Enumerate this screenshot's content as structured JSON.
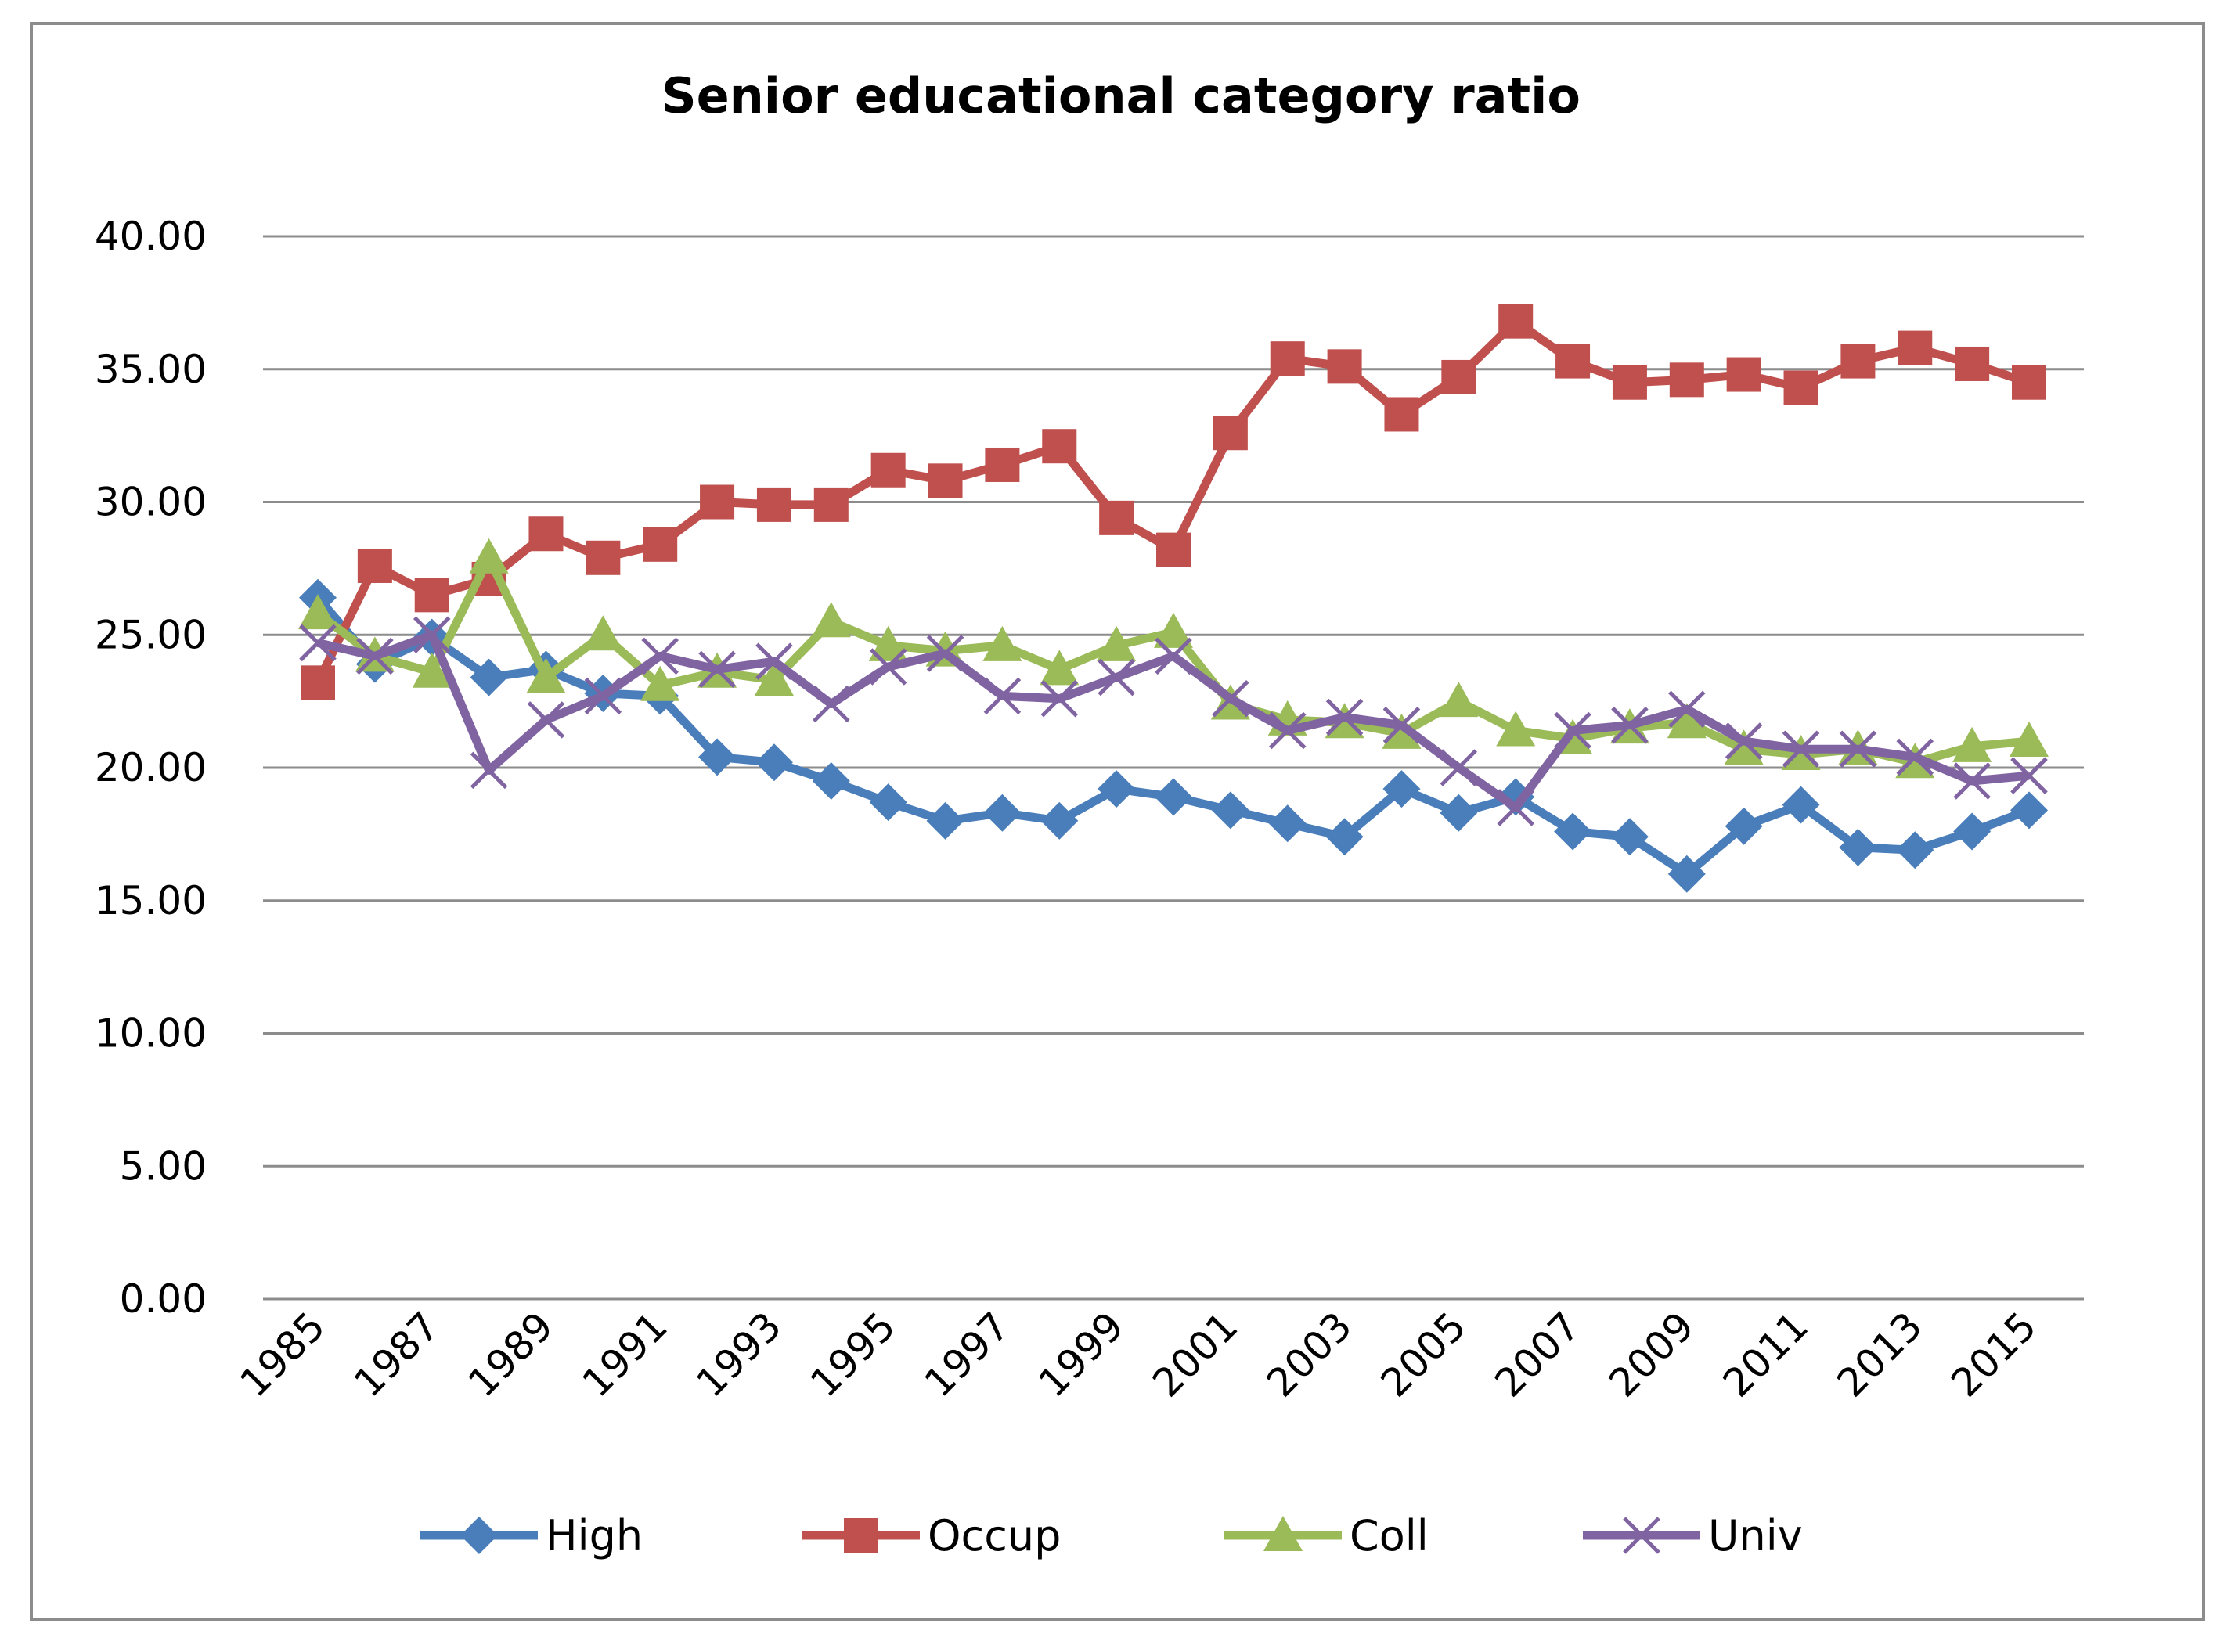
{
  "chart_data": {
    "type": "line",
    "title": "Senior educational  category ratio",
    "xlabel": "",
    "ylabel": "",
    "x": [
      1985,
      1986,
      1987,
      1988,
      1989,
      1990,
      1991,
      1992,
      1993,
      1994,
      1995,
      1996,
      1997,
      1998,
      1999,
      2000,
      2001,
      2002,
      2003,
      2004,
      2005,
      2006,
      2007,
      2008,
      2009,
      2010,
      2011,
      2012,
      2013,
      2014,
      2015
    ],
    "x_tick_labels": [
      "1985",
      "1987",
      "1989",
      "1991",
      "1993",
      "1995",
      "1997",
      "1999",
      "2001",
      "2003",
      "2005",
      "2007",
      "2009",
      "2011",
      "2013",
      "2015"
    ],
    "y_tick_labels": [
      "0.00",
      "5.00",
      "10.00",
      "15.00",
      "20.00",
      "25.00",
      "30.00",
      "35.00",
      "40.00"
    ],
    "ylim": [
      0,
      40
    ],
    "grid": true,
    "legend_position": "bottom",
    "series": [
      {
        "name": "High",
        "color": "#4a7ebb",
        "marker": "diamond",
        "values": [
          26.4,
          23.9,
          24.9,
          23.4,
          23.7,
          22.8,
          22.7,
          20.4,
          20.2,
          19.5,
          18.7,
          18.0,
          18.3,
          18.0,
          19.2,
          18.9,
          18.4,
          17.9,
          17.4,
          19.2,
          18.3,
          18.9,
          17.6,
          17.4,
          16.0,
          17.8,
          18.6,
          17.0,
          16.9,
          17.6,
          18.4
        ]
      },
      {
        "name": "Occup",
        "color": "#c0504d",
        "marker": "square",
        "values": [
          23.2,
          27.6,
          26.5,
          27.1,
          28.8,
          27.9,
          28.4,
          30.0,
          29.9,
          29.9,
          31.2,
          30.8,
          31.4,
          32.1,
          29.4,
          28.2,
          32.6,
          35.4,
          35.1,
          33.3,
          34.7,
          36.8,
          35.3,
          34.5,
          34.6,
          34.8,
          34.3,
          35.3,
          35.8,
          35.2,
          34.5
        ]
      },
      {
        "name": "Coll",
        "color": "#9bbb59",
        "marker": "triangle",
        "values": [
          25.8,
          24.2,
          23.6,
          27.9,
          23.4,
          25.0,
          23.1,
          23.6,
          23.3,
          25.5,
          24.6,
          24.4,
          24.6,
          23.7,
          24.6,
          25.1,
          22.4,
          21.8,
          21.7,
          21.3,
          22.5,
          21.4,
          21.1,
          21.5,
          21.7,
          20.7,
          20.5,
          20.7,
          20.2,
          20.8,
          21.0
        ]
      },
      {
        "name": "Univ",
        "color": "#8064a2",
        "marker": "x",
        "values": [
          24.7,
          24.2,
          25.0,
          19.9,
          21.8,
          22.7,
          24.2,
          23.7,
          24.0,
          22.4,
          23.8,
          24.3,
          22.7,
          22.6,
          23.4,
          24.2,
          22.6,
          21.4,
          21.9,
          21.6,
          20.0,
          18.5,
          21.4,
          21.6,
          22.2,
          21.0,
          20.7,
          20.7,
          20.4,
          19.5,
          19.7
        ]
      }
    ]
  }
}
